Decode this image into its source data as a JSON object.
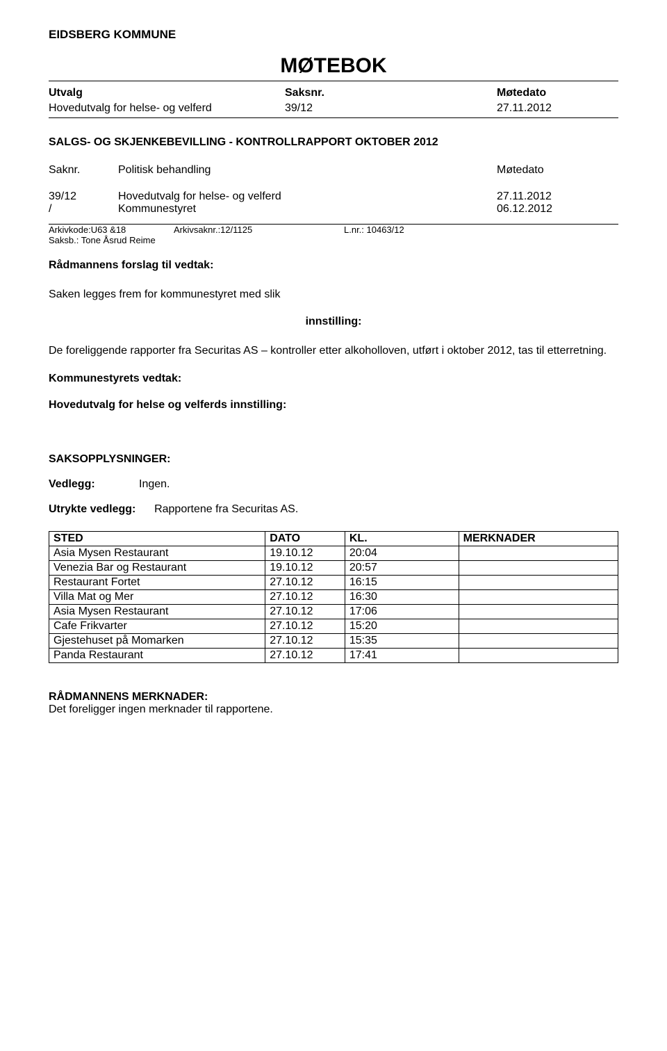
{
  "org": "EIDSBERG KOMMUNE",
  "title": "MØTEBOK",
  "utvalg_header": {
    "c1": "Utvalg",
    "c2": "Saksnr.",
    "c3": "Møtedato"
  },
  "utvalg_row": {
    "c1": "Hovedutvalg for helse- og velferd",
    "c2": "39/12",
    "c3": "27.11.2012"
  },
  "section_title": "SALGS- OG SKJENKEBEVILLING - KONTROLLRAPPORT OKTOBER 2012",
  "polbeh_header": {
    "c1": "Saknr.",
    "c2": "Politisk behandling",
    "c3": "Møtedato"
  },
  "polbeh_rows": [
    {
      "c1": "39/12",
      "c2": "Hovedutvalg for helse- og velferd",
      "c3": "27.11.2012"
    },
    {
      "c1": "/",
      "c2": "Kommunestyret",
      "c3": "06.12.2012"
    }
  ],
  "arkiv": {
    "seg1": "Arkivkode:U63 &18",
    "seg2": "Arkivsaknr.:12/1125",
    "seg3": "L.nr.: 10463/12"
  },
  "saksb": "Saksb.: Tone Åsrud Reime",
  "radm_forslag": "Rådmannens forslag til vedtak:",
  "saken_legges": "Saken legges frem for kommunestyret med slik",
  "innstilling": "innstilling:",
  "body_para": "De foreliggende rapporter fra Securitas AS – kontroller etter alkoholloven, utført i oktober 2012, tas til etterretning.",
  "kommunestyrets": "Kommunestyrets vedtak:",
  "hovedutvalg_innst": "Hovedutvalg for helse og velferds innstilling:",
  "saksopplysninger": "SAKSOPPLYSNINGER:",
  "vedlegg": {
    "label": "Vedlegg:",
    "value": "Ingen."
  },
  "utrykte": {
    "label": "Utrykte vedlegg:",
    "value": "Rapportene fra Securitas AS."
  },
  "table": {
    "columns": [
      "STED",
      "DATO",
      "KL.",
      "MERKNADER"
    ],
    "col_widths": [
      "38%",
      "14%",
      "20%",
      "28%"
    ],
    "rows": [
      [
        "Asia Mysen Restaurant",
        "19.10.12",
        "20:04",
        ""
      ],
      [
        "Venezia Bar og Restaurant",
        "19.10.12",
        "20:57",
        ""
      ],
      [
        "Restaurant Fortet",
        "27.10.12",
        "16:15",
        ""
      ],
      [
        "Villa Mat og Mer",
        "27.10.12",
        "16:30",
        ""
      ],
      [
        "Asia Mysen Restaurant",
        "27.10.12",
        "17:06",
        ""
      ],
      [
        "Cafe Frikvarter",
        "27.10.12",
        "15:20",
        ""
      ],
      [
        "Gjestehuset på Momarken",
        "27.10.12",
        "15:35",
        ""
      ],
      [
        "Panda Restaurant",
        "27.10.12",
        "17:41",
        ""
      ]
    ]
  },
  "radm_merk_hd": "RÅDMANNENS MERKNADER:",
  "radm_merk_body": "Det foreligger ingen merknader til rapportene."
}
